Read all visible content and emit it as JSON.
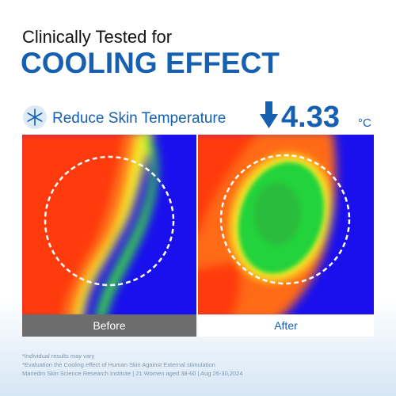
{
  "header": {
    "kicker": "Clinically Tested for",
    "title": "COOLING EFFECT"
  },
  "claim": {
    "label": "Reduce Skin Temperature",
    "value": 4.33,
    "unit": "°C"
  },
  "images": [
    {
      "label": "Before"
    },
    {
      "label": "After"
    }
  ],
  "footnotes": [
    "*Individual results may vary",
    "*Evaluation the Cooling effect of Human Skin Against External stimulation",
    "Mariedm Skin Science Research Institute | 21 Women aged 38-60 | Aug 26-30,2024"
  ]
}
